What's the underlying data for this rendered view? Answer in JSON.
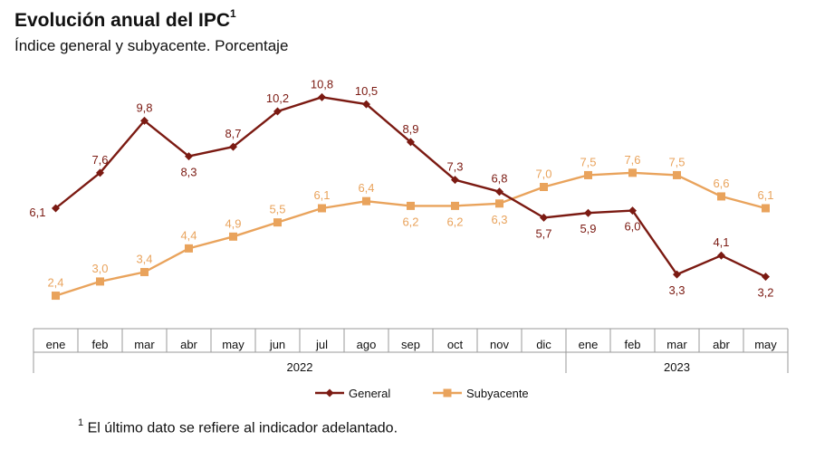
{
  "header": {
    "title": "Evolución anual del IPC",
    "title_sup": "1",
    "subtitle": "Índice general y subyacente. Porcentaje"
  },
  "footnote": {
    "sup": "1",
    "text": "El último dato se refiere al indicador adelantado."
  },
  "colors": {
    "general": "#7b1a12",
    "subyacente": "#e9a35c",
    "axis": "#9a9a9a"
  },
  "chart_data": {
    "type": "line",
    "title": "Evolución anual del IPC",
    "subtitle": "Índice general y subyacente. Porcentaje",
    "categories": [
      "ene",
      "feb",
      "mar",
      "abr",
      "may",
      "jun",
      "jul",
      "ago",
      "sep",
      "oct",
      "nov",
      "dic",
      "ene",
      "feb",
      "mar",
      "abr",
      "may"
    ],
    "years": [
      {
        "label": "2022",
        "from": 0,
        "to": 11
      },
      {
        "label": "2023",
        "from": 12,
        "to": 16
      }
    ],
    "series": [
      {
        "name": "General",
        "marker": "diamond",
        "values": [
          6.1,
          7.6,
          9.8,
          8.3,
          8.7,
          10.2,
          10.8,
          10.5,
          8.9,
          7.3,
          6.8,
          5.7,
          5.9,
          6.0,
          3.3,
          4.1,
          3.2
        ],
        "labels": [
          "6,1",
          "7,6",
          "9,8",
          "8,3",
          "8,7",
          "10,2",
          "10,8",
          "10,5",
          "8,9",
          "7,3",
          "6,8",
          "5,7",
          "5,9",
          "6,0",
          "3,3",
          "4,1",
          "3,2"
        ]
      },
      {
        "name": "Subyacente",
        "marker": "square",
        "values": [
          2.4,
          3.0,
          3.4,
          4.4,
          4.9,
          5.5,
          6.1,
          6.4,
          6.2,
          6.2,
          6.3,
          7.0,
          7.5,
          7.6,
          7.5,
          6.6,
          6.1
        ],
        "labels": [
          "2,4",
          "3,0",
          "3,4",
          "4,4",
          "4,9",
          "5,5",
          "6,1",
          "6,4",
          "6,2",
          "6,2",
          "6,3",
          "7,0",
          "7,5",
          "7,6",
          "7,5",
          "6,6",
          "6,1"
        ]
      }
    ],
    "legend_position": "bottom",
    "grid": false
  }
}
